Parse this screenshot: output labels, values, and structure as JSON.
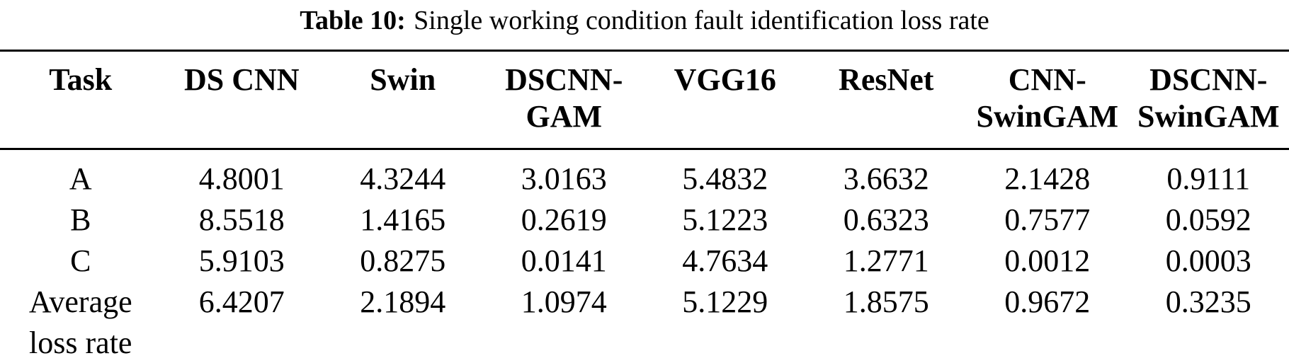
{
  "caption": {
    "label": "Table 10:",
    "text": "Single working condition fault identification loss rate"
  },
  "table": {
    "columns": [
      "Task",
      "DS CNN",
      "Swin",
      "DSCNN-\nGAM",
      "VGG16",
      "ResNet",
      "CNN-\nSwinGAM",
      "DSCNN-\nSwinGAM"
    ],
    "rows": [
      {
        "task": "A",
        "values": [
          "4.8001",
          "4.3244",
          "3.0163",
          "5.4832",
          "3.6632",
          "2.1428",
          "0.9111"
        ]
      },
      {
        "task": "B",
        "values": [
          "8.5518",
          "1.4165",
          "0.2619",
          "5.1223",
          "0.6323",
          "0.7577",
          "0.0592"
        ]
      },
      {
        "task": "C",
        "values": [
          "5.9103",
          "0.8275",
          "0.0141",
          "4.7634",
          "1.2771",
          "0.0012",
          "0.0003"
        ]
      },
      {
        "task": "Average\nloss rate",
        "values": [
          "6.4207",
          "2.1894",
          "1.0974",
          "5.1229",
          "1.8575",
          "0.9672",
          "0.3235"
        ]
      }
    ]
  },
  "colors": {
    "text": "#000000",
    "background": "#ffffff",
    "rule": "#000000"
  }
}
